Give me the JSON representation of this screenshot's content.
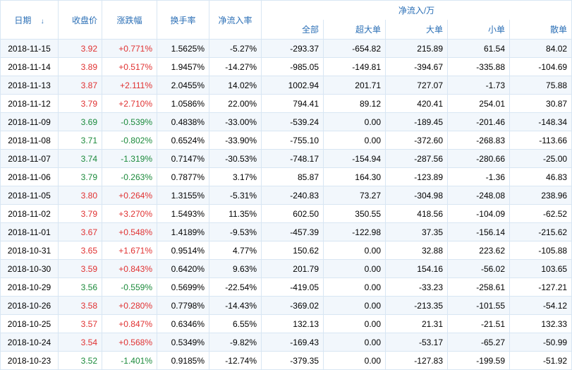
{
  "headers": {
    "date": "日期",
    "close": "收盘价",
    "change_pct": "涨跌幅",
    "turnover": "换手率",
    "net_inflow_pct": "净流入率",
    "net_inflow_group": "净流入/万",
    "sub": {
      "all": "全部",
      "super": "超大单",
      "large": "大单",
      "small": "小单",
      "retail": "散单"
    }
  },
  "rows": [
    {
      "date": "2018-11-15",
      "close": "3.92",
      "chg": "+0.771%",
      "chg_dir": "up",
      "turnover": "1.5625%",
      "net_pct": "-5.27%",
      "all": "-293.37",
      "super": "-654.82",
      "large": "215.89",
      "small": "61.54",
      "retail": "84.02"
    },
    {
      "date": "2018-11-14",
      "close": "3.89",
      "chg": "+0.517%",
      "chg_dir": "up",
      "turnover": "1.9457%",
      "net_pct": "-14.27%",
      "all": "-985.05",
      "super": "-149.81",
      "large": "-394.67",
      "small": "-335.88",
      "retail": "-104.69"
    },
    {
      "date": "2018-11-13",
      "close": "3.87",
      "chg": "+2.111%",
      "chg_dir": "up",
      "turnover": "2.0455%",
      "net_pct": "14.02%",
      "all": "1002.94",
      "super": "201.71",
      "large": "727.07",
      "small": "-1.73",
      "retail": "75.88"
    },
    {
      "date": "2018-11-12",
      "close": "3.79",
      "chg": "+2.710%",
      "chg_dir": "up",
      "turnover": "1.0586%",
      "net_pct": "22.00%",
      "all": "794.41",
      "super": "89.12",
      "large": "420.41",
      "small": "254.01",
      "retail": "30.87"
    },
    {
      "date": "2018-11-09",
      "close": "3.69",
      "chg": "-0.539%",
      "chg_dir": "down",
      "turnover": "0.4838%",
      "net_pct": "-33.00%",
      "all": "-539.24",
      "super": "0.00",
      "large": "-189.45",
      "small": "-201.46",
      "retail": "-148.34"
    },
    {
      "date": "2018-11-08",
      "close": "3.71",
      "chg": "-0.802%",
      "chg_dir": "down",
      "turnover": "0.6524%",
      "net_pct": "-33.90%",
      "all": "-755.10",
      "super": "0.00",
      "large": "-372.60",
      "small": "-268.83",
      "retail": "-113.66"
    },
    {
      "date": "2018-11-07",
      "close": "3.74",
      "chg": "-1.319%",
      "chg_dir": "down",
      "turnover": "0.7147%",
      "net_pct": "-30.53%",
      "all": "-748.17",
      "super": "-154.94",
      "large": "-287.56",
      "small": "-280.66",
      "retail": "-25.00"
    },
    {
      "date": "2018-11-06",
      "close": "3.79",
      "chg": "-0.263%",
      "chg_dir": "down",
      "turnover": "0.7877%",
      "net_pct": "3.17%",
      "all": "85.87",
      "super": "164.30",
      "large": "-123.89",
      "small": "-1.36",
      "retail": "46.83"
    },
    {
      "date": "2018-11-05",
      "close": "3.80",
      "chg": "+0.264%",
      "chg_dir": "up",
      "turnover": "1.3155%",
      "net_pct": "-5.31%",
      "all": "-240.83",
      "super": "73.27",
      "large": "-304.98",
      "small": "-248.08",
      "retail": "238.96"
    },
    {
      "date": "2018-11-02",
      "close": "3.79",
      "chg": "+3.270%",
      "chg_dir": "up",
      "turnover": "1.5493%",
      "net_pct": "11.35%",
      "all": "602.50",
      "super": "350.55",
      "large": "418.56",
      "small": "-104.09",
      "retail": "-62.52"
    },
    {
      "date": "2018-11-01",
      "close": "3.67",
      "chg": "+0.548%",
      "chg_dir": "up",
      "turnover": "1.4189%",
      "net_pct": "-9.53%",
      "all": "-457.39",
      "super": "-122.98",
      "large": "37.35",
      "small": "-156.14",
      "retail": "-215.62"
    },
    {
      "date": "2018-10-31",
      "close": "3.65",
      "chg": "+1.671%",
      "chg_dir": "up",
      "turnover": "0.9514%",
      "net_pct": "4.77%",
      "all": "150.62",
      "super": "0.00",
      "large": "32.88",
      "small": "223.62",
      "retail": "-105.88"
    },
    {
      "date": "2018-10-30",
      "close": "3.59",
      "chg": "+0.843%",
      "chg_dir": "up",
      "turnover": "0.6420%",
      "net_pct": "9.63%",
      "all": "201.79",
      "super": "0.00",
      "large": "154.16",
      "small": "-56.02",
      "retail": "103.65"
    },
    {
      "date": "2018-10-29",
      "close": "3.56",
      "chg": "-0.559%",
      "chg_dir": "down",
      "turnover": "0.5699%",
      "net_pct": "-22.54%",
      "all": "-419.05",
      "super": "0.00",
      "large": "-33.23",
      "small": "-258.61",
      "retail": "-127.21"
    },
    {
      "date": "2018-10-26",
      "close": "3.58",
      "chg": "+0.280%",
      "chg_dir": "up",
      "turnover": "0.7798%",
      "net_pct": "-14.43%",
      "all": "-369.02",
      "super": "0.00",
      "large": "-213.35",
      "small": "-101.55",
      "retail": "-54.12"
    },
    {
      "date": "2018-10-25",
      "close": "3.57",
      "chg": "+0.847%",
      "chg_dir": "up",
      "turnover": "0.6346%",
      "net_pct": "6.55%",
      "all": "132.13",
      "super": "0.00",
      "large": "21.31",
      "small": "-21.51",
      "retail": "132.33"
    },
    {
      "date": "2018-10-24",
      "close": "3.54",
      "chg": "+0.568%",
      "chg_dir": "up",
      "turnover": "0.5349%",
      "net_pct": "-9.82%",
      "all": "-169.43",
      "super": "0.00",
      "large": "-53.17",
      "small": "-65.27",
      "retail": "-50.99"
    },
    {
      "date": "2018-10-23",
      "close": "3.52",
      "chg": "-1.401%",
      "chg_dir": "down",
      "turnover": "0.9185%",
      "net_pct": "-12.74%",
      "all": "-379.35",
      "super": "0.00",
      "large": "-127.83",
      "small": "-199.59",
      "retail": "-51.92"
    }
  ]
}
